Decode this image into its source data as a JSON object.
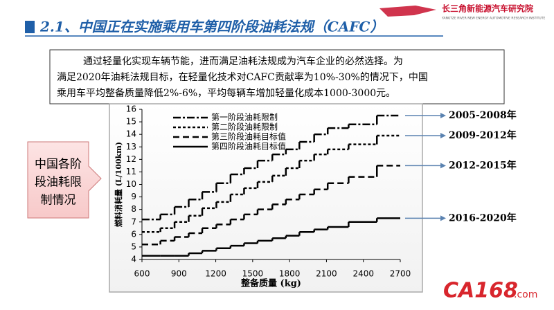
{
  "header": {
    "title": "2.1、中国正在实施乘用车第四阶段油耗法规（CAFC）",
    "logo_cn": "长三角新能源汽车研究院",
    "logo_en": "YANGTZE RIVER NEW ENERGY AUTOMOTIVE RESEARCH INSTITUTE"
  },
  "summary": {
    "lines": [
      "通过轻量化实现车辆节能，进而满足油耗法规成为汽车企业的必然选择。为",
      "满足2020年油耗法规目标，在轻量化技术对CAFC贡献率为10%-30%的情况下，中国",
      "乘用车平均整备质量降低2%-6%，平均每辆车增加轻量化成本1000-3000元。"
    ]
  },
  "callout": {
    "lines": [
      "中国各阶",
      "段油耗限",
      "制情况"
    ]
  },
  "watermark": {
    "brand": "CA168",
    "suffix": ".com"
  },
  "chart_data": {
    "type": "step",
    "x_label": "整备质量 (kg)",
    "y_label": "燃料消耗量 (L/100km)",
    "x": [
      600,
      750,
      865,
      980,
      1090,
      1205,
      1320,
      1430,
      1540,
      1660,
      1770,
      1880,
      2000,
      2110,
      2280,
      2510
    ],
    "series": [
      {
        "name": "第四阶段油耗目标值",
        "color": "#000000",
        "line_style": "solid",
        "period": "2016-2020年",
        "values": [
          4.3,
          4.3,
          4.3,
          4.5,
          4.7,
          4.9,
          5.1,
          5.3,
          5.5,
          5.7,
          5.9,
          6.2,
          6.4,
          6.6,
          7.0,
          7.3
        ]
      },
      {
        "name": "第三阶段油耗目标值",
        "color": "#000000",
        "line_style": "dashed",
        "period": "2012-2015年",
        "values": [
          5.2,
          5.5,
          5.8,
          6.1,
          6.5,
          6.8,
          7.2,
          7.6,
          8.0,
          8.4,
          8.8,
          9.2,
          9.6,
          10.1,
          10.6,
          11.5
        ]
      },
      {
        "name": "第二阶段油耗限制",
        "color": "#000000",
        "line_style": "dotted",
        "period": "2009-2012年",
        "values": [
          6.2,
          6.5,
          7.0,
          7.5,
          8.1,
          8.6,
          9.2,
          9.7,
          10.2,
          10.7,
          11.3,
          11.9,
          12.4,
          12.8,
          13.2,
          13.9
        ]
      },
      {
        "name": "第一阶段油耗限制",
        "color": "#000000",
        "line_style": "dashdot",
        "period": "2005-2008年",
        "values": [
          7.2,
          7.6,
          8.2,
          8.8,
          9.4,
          10.1,
          10.8,
          11.3,
          11.9,
          12.4,
          12.8,
          13.4,
          14.0,
          14.5,
          14.8,
          15.5
        ]
      }
    ],
    "xlim": [
      600,
      2700
    ],
    "xticks": [
      600,
      900,
      1200,
      1500,
      1800,
      2100,
      2400,
      2700
    ],
    "ylim": [
      4,
      16
    ],
    "yticks": [
      4,
      5,
      6,
      7,
      8,
      9,
      10,
      11,
      12,
      13,
      14,
      15,
      16
    ],
    "grid": false,
    "legend": "upper-left"
  }
}
